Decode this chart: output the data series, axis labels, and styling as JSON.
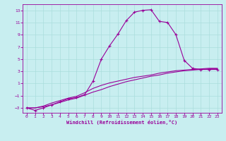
{
  "title": "",
  "xlabel": "Windchill (Refroidissement éolien,°C)",
  "ylabel": "",
  "bg_color": "#c8eef0",
  "line_color": "#990099",
  "grid_color": "#aadddd",
  "xlim": [
    -0.5,
    23.5
  ],
  "ylim": [
    -3.8,
    14.0
  ],
  "xticks": [
    0,
    1,
    2,
    3,
    4,
    5,
    6,
    7,
    8,
    9,
    10,
    11,
    12,
    13,
    14,
    15,
    16,
    17,
    18,
    19,
    20,
    21,
    22,
    23
  ],
  "yticks": [
    -3,
    -1,
    1,
    3,
    5,
    7,
    9,
    11,
    13
  ],
  "curve1_x": [
    0,
    1,
    2,
    3,
    4,
    5,
    6,
    7,
    8,
    9,
    10,
    11,
    12,
    13,
    14,
    15,
    16,
    17,
    18,
    19,
    20,
    21,
    22,
    23
  ],
  "curve1_y": [
    -3.0,
    -3.4,
    -3.0,
    -2.5,
    -2.0,
    -1.5,
    -1.3,
    -0.8,
    1.4,
    5.0,
    7.2,
    9.1,
    11.3,
    12.7,
    13.0,
    13.1,
    11.2,
    11.0,
    9.0,
    4.8,
    3.5,
    3.3,
    3.3,
    3.3
  ],
  "curve2_x": [
    0,
    1,
    2,
    3,
    4,
    5,
    6,
    7,
    8,
    9,
    10,
    11,
    12,
    13,
    14,
    15,
    16,
    17,
    18,
    19,
    20,
    21,
    22,
    23
  ],
  "curve2_y": [
    -3.0,
    -3.0,
    -2.8,
    -2.5,
    -2.1,
    -1.7,
    -1.4,
    -0.9,
    -0.4,
    0.0,
    0.5,
    0.9,
    1.3,
    1.6,
    1.9,
    2.2,
    2.4,
    2.7,
    2.9,
    3.1,
    3.2,
    3.3,
    3.4,
    3.4
  ],
  "curve3_x": [
    0,
    1,
    2,
    3,
    4,
    5,
    6,
    7,
    8,
    9,
    10,
    11,
    12,
    13,
    14,
    15,
    16,
    17,
    18,
    19,
    20,
    21,
    22,
    23
  ],
  "curve3_y": [
    -3.0,
    -3.0,
    -2.7,
    -2.2,
    -1.8,
    -1.4,
    -1.1,
    -0.5,
    0.2,
    0.7,
    1.1,
    1.4,
    1.7,
    2.0,
    2.2,
    2.4,
    2.7,
    2.9,
    3.1,
    3.2,
    3.3,
    3.4,
    3.5,
    3.5
  ]
}
